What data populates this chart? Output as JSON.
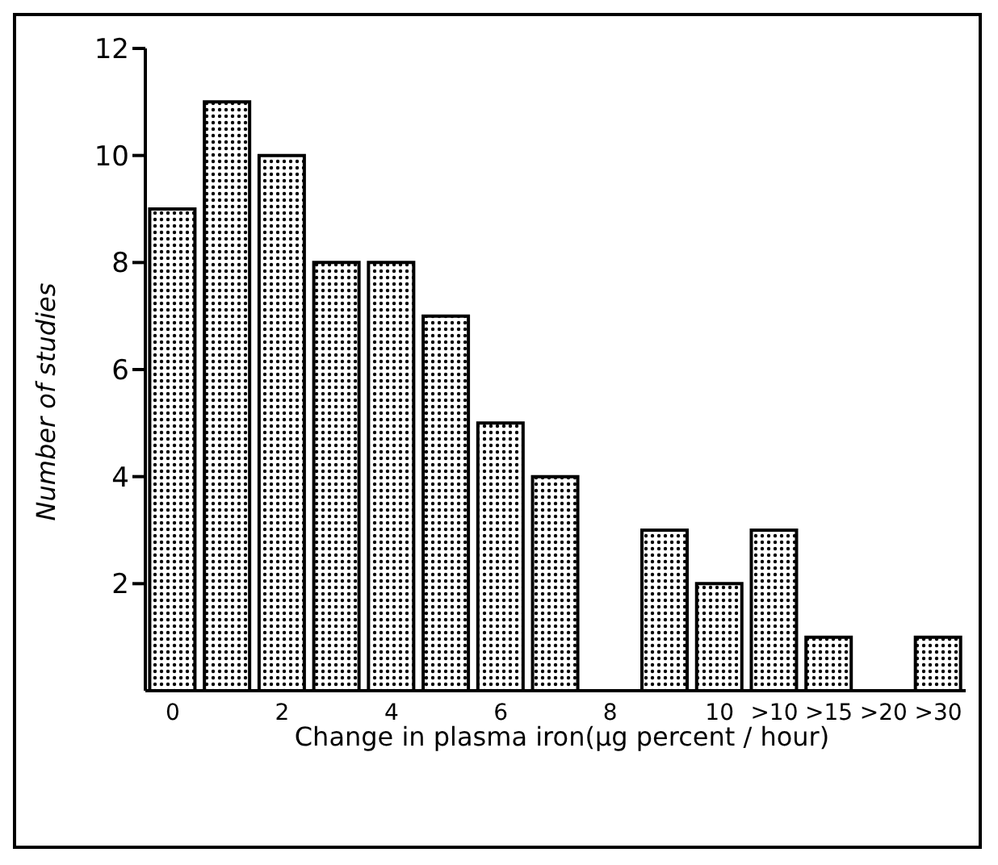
{
  "chart_data": {
    "type": "bar",
    "xlabel": "Change in plasma iron(μg percent / hour)",
    "ylabel": "Number of studies",
    "categories": [
      "0",
      null,
      "2",
      null,
      "4",
      null,
      "6",
      null,
      "8",
      null,
      "10",
      ">10",
      ">15",
      ">20",
      ">30"
    ],
    "values": [
      9,
      11,
      10,
      8,
      8,
      7,
      5,
      4,
      0,
      3,
      2,
      3,
      1,
      0,
      1
    ],
    "color": "#000000",
    "ylim": [
      0,
      12
    ],
    "yticks": [
      2,
      4,
      6,
      8,
      10,
      12
    ],
    "grid": false
  }
}
